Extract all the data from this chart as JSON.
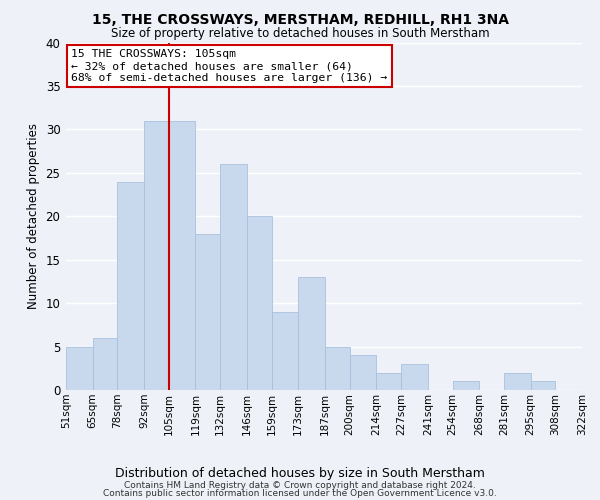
{
  "title": "15, THE CROSSWAYS, MERSTHAM, REDHILL, RH1 3NA",
  "subtitle": "Size of property relative to detached houses in South Merstham",
  "xlabel": "Distribution of detached houses by size in South Merstham",
  "ylabel": "Number of detached properties",
  "bar_color": "#c8d9ee",
  "bar_edge_color": "#a8c0de",
  "background_color": "#eef2f8",
  "grid_color": "#ffffff",
  "bins": [
    51,
    65,
    78,
    92,
    105,
    119,
    132,
    146,
    159,
    173,
    187,
    200,
    214,
    227,
    241,
    254,
    268,
    281,
    295,
    308,
    322
  ],
  "bin_labels": [
    "51sqm",
    "65sqm",
    "78sqm",
    "92sqm",
    "105sqm",
    "119sqm",
    "132sqm",
    "146sqm",
    "159sqm",
    "173sqm",
    "187sqm",
    "200sqm",
    "214sqm",
    "227sqm",
    "241sqm",
    "254sqm",
    "268sqm",
    "281sqm",
    "295sqm",
    "308sqm",
    "322sqm"
  ],
  "values": [
    5,
    6,
    24,
    31,
    31,
    18,
    26,
    20,
    9,
    13,
    5,
    4,
    2,
    3,
    0,
    1,
    0,
    2,
    1,
    0
  ],
  "vline_x": 105,
  "vline_color": "#cc0000",
  "annotation_lines": [
    "15 THE CROSSWAYS: 105sqm",
    "← 32% of detached houses are smaller (64)",
    "68% of semi-detached houses are larger (136) →"
  ],
  "annotation_box_color": "#ffffff",
  "annotation_box_edge": "#cc0000",
  "ylim": [
    0,
    40
  ],
  "yticks": [
    0,
    5,
    10,
    15,
    20,
    25,
    30,
    35,
    40
  ],
  "footer1": "Contains HM Land Registry data © Crown copyright and database right 2024.",
  "footer2": "Contains public sector information licensed under the Open Government Licence v3.0."
}
